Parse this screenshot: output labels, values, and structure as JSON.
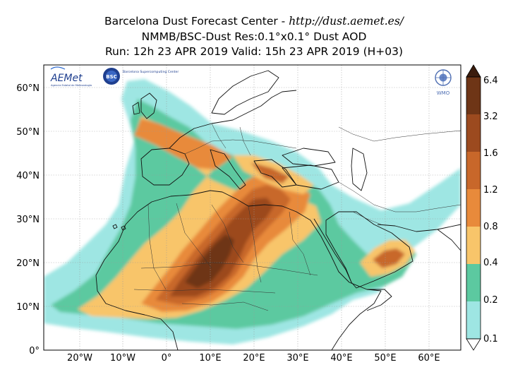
{
  "title": {
    "line1_prefix": "Barcelona Dust Forecast Center - ",
    "line1_url": "http://dust.aemet.es/",
    "line2": "NMMB/BSC-Dust   Res:0.1°x0.1°   Dust AOD",
    "line3": "Run: 12h 23 APR 2019   Valid: 15h 23 APR 2019 (H+03)"
  },
  "logos": {
    "aemet": "AEMet",
    "aemet_sub": "Agencia Estatal de Meteorología",
    "bsc": "BSC",
    "bsc_text": "Barcelona Supercomputing Center",
    "wmo": "WMO"
  },
  "axes": {
    "lon_ticks": [
      "20°W",
      "10°W",
      "0°",
      "10°E",
      "20°E",
      "30°E",
      "40°E",
      "50°E",
      "60°E"
    ],
    "lat_ticks": [
      "60°N",
      "50°N",
      "40°N",
      "30°N",
      "20°N",
      "10°N",
      "0°"
    ]
  },
  "colorbar": {
    "labels": [
      "0.1",
      "0.2",
      "0.4",
      "0.8",
      "1.2",
      "1.6",
      "3.2",
      "6.4"
    ],
    "colors": [
      "#9ee6e3",
      "#5cc9a0",
      "#f8c56a",
      "#e88a3b",
      "#c8672a",
      "#9c4a1f",
      "#6e3516",
      "#3b1c0d"
    ]
  }
}
